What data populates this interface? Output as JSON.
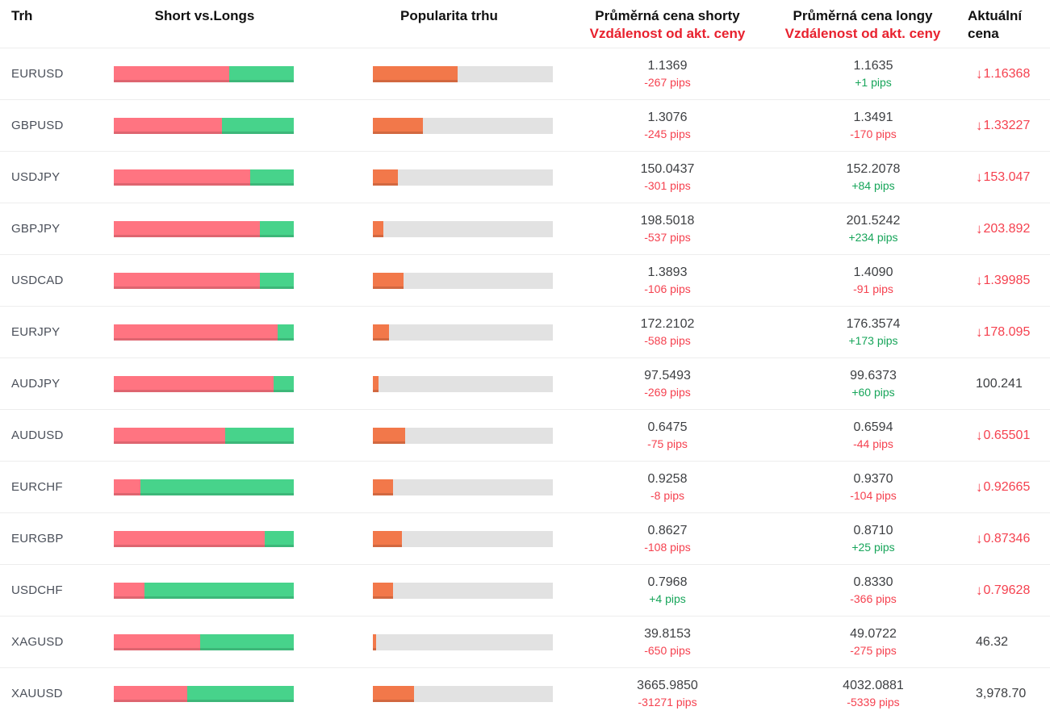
{
  "colors": {
    "shorts_red": "#ff7481",
    "longs_green": "#47d38b",
    "popularity_orange": "#f2784a",
    "track_gray": "#e2e2e2",
    "pips_red": "#f5414f",
    "pips_green": "#17a55a",
    "header_red": "#e8212e",
    "price_down_red": "#f5414f"
  },
  "table": {
    "headers": {
      "market": "Trh",
      "short_vs_longs": "Short vs.Longs",
      "popularity": "Popularita trhu",
      "avg_short_title": "Průměrná cena shorty",
      "avg_short_subtitle": "Vzdálenost od akt. ceny",
      "avg_long_title": "Průměrná cena longy",
      "avg_long_subtitle": "Vzdálenost od akt. ceny",
      "current_line1": "Aktuální",
      "current_line2": "cena"
    },
    "rows": [
      {
        "market": "EURUSD",
        "short_pct": 64,
        "long_pct": 36,
        "popularity_pct": 47,
        "short_price": "1.1369",
        "short_pips": "-267 pips",
        "short_dir": "neg",
        "long_price": "1.1635",
        "long_pips": "+1 pips",
        "long_dir": "pos",
        "current_price": "1.16368",
        "current_dir": "down"
      },
      {
        "market": "GBPUSD",
        "short_pct": 60,
        "long_pct": 40,
        "popularity_pct": 28,
        "short_price": "1.3076",
        "short_pips": "-245 pips",
        "short_dir": "neg",
        "long_price": "1.3491",
        "long_pips": "-170 pips",
        "long_dir": "neg",
        "current_price": "1.33227",
        "current_dir": "down"
      },
      {
        "market": "USDJPY",
        "short_pct": 76,
        "long_pct": 24,
        "popularity_pct": 14,
        "short_price": "150.0437",
        "short_pips": "-301 pips",
        "short_dir": "neg",
        "long_price": "152.2078",
        "long_pips": "+84 pips",
        "long_dir": "pos",
        "current_price": "153.047",
        "current_dir": "down"
      },
      {
        "market": "GBPJPY",
        "short_pct": 81,
        "long_pct": 19,
        "popularity_pct": 6,
        "short_price": "198.5018",
        "short_pips": "-537 pips",
        "short_dir": "neg",
        "long_price": "201.5242",
        "long_pips": "+234 pips",
        "long_dir": "pos",
        "current_price": "203.892",
        "current_dir": "down"
      },
      {
        "market": "USDCAD",
        "short_pct": 81,
        "long_pct": 19,
        "popularity_pct": 17,
        "short_price": "1.3893",
        "short_pips": "-106 pips",
        "short_dir": "neg",
        "long_price": "1.4090",
        "long_pips": "-91 pips",
        "long_dir": "neg",
        "current_price": "1.39985",
        "current_dir": "down"
      },
      {
        "market": "EURJPY",
        "short_pct": 91,
        "long_pct": 9,
        "popularity_pct": 9,
        "short_price": "172.2102",
        "short_pips": "-588 pips",
        "short_dir": "neg",
        "long_price": "176.3574",
        "long_pips": "+173 pips",
        "long_dir": "pos",
        "current_price": "178.095",
        "current_dir": "down"
      },
      {
        "market": "AUDJPY",
        "short_pct": 89,
        "long_pct": 11,
        "popularity_pct": 3,
        "short_price": "97.5493",
        "short_pips": "-269 pips",
        "short_dir": "neg",
        "long_price": "99.6373",
        "long_pips": "+60 pips",
        "long_dir": "pos",
        "current_price": "100.241",
        "current_dir": "none"
      },
      {
        "market": "AUDUSD",
        "short_pct": 62,
        "long_pct": 38,
        "popularity_pct": 18,
        "short_price": "0.6475",
        "short_pips": "-75 pips",
        "short_dir": "neg",
        "long_price": "0.6594",
        "long_pips": "-44 pips",
        "long_dir": "neg",
        "current_price": "0.65501",
        "current_dir": "down"
      },
      {
        "market": "EURCHF",
        "short_pct": 15,
        "long_pct": 85,
        "popularity_pct": 11,
        "short_price": "0.9258",
        "short_pips": "-8 pips",
        "short_dir": "neg",
        "long_price": "0.9370",
        "long_pips": "-104 pips",
        "long_dir": "neg",
        "current_price": "0.92665",
        "current_dir": "down"
      },
      {
        "market": "EURGBP",
        "short_pct": 84,
        "long_pct": 16,
        "popularity_pct": 16,
        "short_price": "0.8627",
        "short_pips": "-108 pips",
        "short_dir": "neg",
        "long_price": "0.8710",
        "long_pips": "+25 pips",
        "long_dir": "pos",
        "current_price": "0.87346",
        "current_dir": "down"
      },
      {
        "market": "USDCHF",
        "short_pct": 17,
        "long_pct": 83,
        "popularity_pct": 11,
        "short_price": "0.7968",
        "short_pips": "+4 pips",
        "short_dir": "pos",
        "long_price": "0.8330",
        "long_pips": "-366 pips",
        "long_dir": "neg",
        "current_price": "0.79628",
        "current_dir": "down"
      },
      {
        "market": "XAGUSD",
        "short_pct": 48,
        "long_pct": 52,
        "popularity_pct": 2,
        "short_price": "39.8153",
        "short_pips": "-650 pips",
        "short_dir": "neg",
        "long_price": "49.0722",
        "long_pips": "-275 pips",
        "long_dir": "neg",
        "current_price": "46.32",
        "current_dir": "none"
      },
      {
        "market": "XAUUSD",
        "short_pct": 41,
        "long_pct": 59,
        "popularity_pct": 23,
        "short_price": "3665.9850",
        "short_pips": "-31271 pips",
        "short_dir": "neg",
        "long_price": "4032.0881",
        "long_pips": "-5339 pips",
        "long_dir": "neg",
        "current_price": "3,978.70",
        "current_dir": "none"
      }
    ]
  }
}
